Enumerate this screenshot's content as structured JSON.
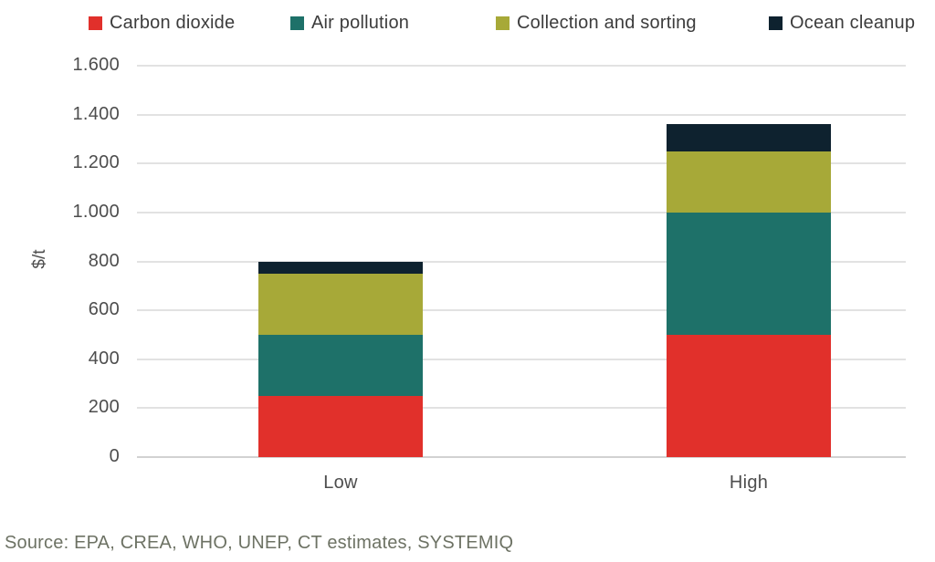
{
  "chart_data": {
    "type": "bar",
    "stacked": true,
    "categories": [
      "Low",
      "High"
    ],
    "series": [
      {
        "name": "Carbon dioxide",
        "color": "#e1302b",
        "values": [
          250,
          500
        ]
      },
      {
        "name": "Air pollution",
        "color": "#1e7169",
        "values": [
          250,
          500
        ]
      },
      {
        "name": "Collection and sorting",
        "color": "#a7a938",
        "values": [
          250,
          250
        ]
      },
      {
        "name": "Ocean cleanup",
        "color": "#0e222f",
        "values": [
          50,
          110
        ]
      }
    ],
    "totals": [
      800,
      1360
    ],
    "title": "",
    "xlabel": "",
    "ylabel": "$/t",
    "ylim": [
      0,
      1600
    ],
    "ytick_step": 200,
    "ytick_labels": [
      "0",
      "200",
      "400",
      "600",
      "800",
      "1.000",
      "1.200",
      "1.400",
      "1.600"
    ],
    "grid": true,
    "legend_position": "top"
  },
  "source": {
    "text": "Source: EPA, CREA, WHO, UNEP, CT estimates, SYSTEMIQ"
  },
  "colors": {
    "background": "#ffffff",
    "gridline": "#e2e2e2",
    "zero_line": "#d2d2d2",
    "tick_text": "#4d4d4d",
    "legend_text": "#3c3c3c",
    "source_text": "#6d7264"
  }
}
